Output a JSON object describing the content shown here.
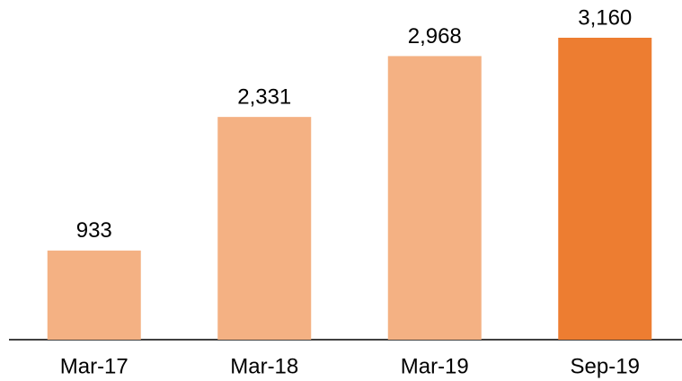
{
  "chart_data": {
    "type": "bar",
    "categories": [
      "Mar-17",
      "Mar-18",
      "Mar-19",
      "Sep-19"
    ],
    "values": [
      933,
      2331,
      2968,
      3160
    ],
    "value_labels": [
      "933",
      "2,331",
      "2,968",
      "3,160"
    ],
    "colors": [
      "#f4b183",
      "#f4b183",
      "#f4b183",
      "#ed7d31"
    ]
  }
}
